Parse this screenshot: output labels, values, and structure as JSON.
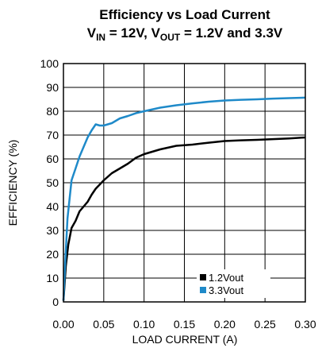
{
  "chart_data": {
    "type": "line",
    "title": "Efficiency vs Load Current",
    "subtitle_parts": {
      "v_in_base": "V",
      "v_in_sub": "IN",
      "v_in_value": " = 12V, ",
      "v_out_base": "V",
      "v_out_sub": "OUT",
      "v_out_value": " = 1.2V and 3.3V"
    },
    "xlabel": "LOAD CURRENT (A)",
    "ylabel": "EFFICIENCY (%)",
    "xlim": [
      0,
      0.3
    ],
    "ylim": [
      0,
      100
    ],
    "x_ticks": [
      "0.00",
      "0.05",
      "0.10",
      "0.15",
      "0.20",
      "0.25",
      "0.30"
    ],
    "y_ticks": [
      "0",
      "10",
      "20",
      "30",
      "40",
      "50",
      "60",
      "70",
      "80",
      "90",
      "100"
    ],
    "grid": true,
    "legend_position": "bottom-right",
    "series": [
      {
        "name": "1.2Vout",
        "color": "#000000",
        "x": [
          0.0,
          0.003,
          0.006,
          0.01,
          0.015,
          0.02,
          0.025,
          0.03,
          0.035,
          0.04,
          0.05,
          0.06,
          0.07,
          0.08,
          0.09,
          0.1,
          0.12,
          0.14,
          0.16,
          0.18,
          0.2,
          0.22,
          0.24,
          0.26,
          0.28,
          0.3
        ],
        "y": [
          0.5,
          15,
          24,
          31,
          34,
          38,
          40,
          42,
          45,
          47.5,
          51,
          54,
          56,
          58,
          60.5,
          62,
          64,
          65.5,
          66,
          66.8,
          67.5,
          67.8,
          68,
          68.3,
          68.6,
          69
        ]
      },
      {
        "name": "3.3Vout",
        "color": "#1f8ac9",
        "x": [
          0.0,
          0.002,
          0.005,
          0.01,
          0.015,
          0.02,
          0.025,
          0.03,
          0.035,
          0.04,
          0.045,
          0.05,
          0.055,
          0.06,
          0.07,
          0.08,
          0.09,
          0.1,
          0.12,
          0.14,
          0.16,
          0.18,
          0.2,
          0.22,
          0.24,
          0.26,
          0.28,
          0.3
        ],
        "y": [
          0.5,
          15,
          35,
          51,
          56,
          61,
          65,
          69,
          72,
          74.5,
          74,
          74,
          74.5,
          75,
          77,
          78,
          79.2,
          80,
          81.5,
          82.5,
          83.3,
          84,
          84.5,
          84.8,
          85,
          85.3,
          85.5,
          85.7
        ]
      }
    ]
  },
  "colors": {
    "axis": "#000000",
    "grid": "#000000",
    "series_1_2v": "#000000",
    "series_3_3v": "#1f8ac9"
  }
}
